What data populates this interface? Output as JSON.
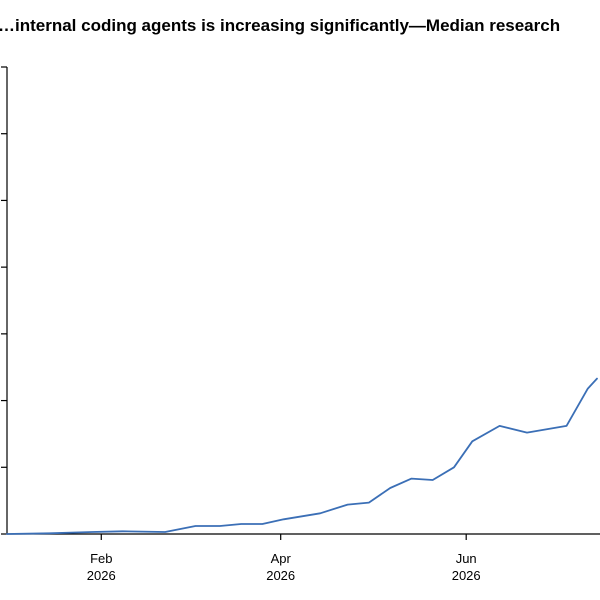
{
  "chart_data": {
    "type": "line",
    "title": "…internal coding agents is increasing significantly—Median research",
    "xlabel": "",
    "ylabel": "",
    "x_ticks": [
      {
        "date": "2026-02-01",
        "month": "Feb",
        "year": "2026"
      },
      {
        "date": "2026-04-01",
        "month": "Apr",
        "year": "2026"
      },
      {
        "date": "2026-06-01",
        "month": "Jun",
        "year": "2026"
      }
    ],
    "xlim": [
      "2026-01-01",
      "2026-07-15"
    ],
    "ylim": [
      0,
      7
    ],
    "y_tick_values": [
      0,
      1,
      2,
      3,
      4,
      5,
      6,
      7
    ],
    "y_tick_labels_visible": false,
    "grid": false,
    "line_color": "#3b6fb6",
    "series": [
      {
        "x": [
          "2026-01-01",
          "2026-01-15",
          "2026-01-29",
          "2026-02-08",
          "2026-02-22",
          "2026-03-04",
          "2026-03-12",
          "2026-03-19",
          "2026-03-26",
          "2026-04-02",
          "2026-04-14",
          "2026-04-23",
          "2026-04-30",
          "2026-05-07",
          "2026-05-14",
          "2026-05-21",
          "2026-05-28",
          "2026-06-03",
          "2026-06-12",
          "2026-06-21",
          "2026-07-04",
          "2026-07-11",
          "2026-07-14"
        ],
        "y": [
          0.0,
          0.01,
          0.03,
          0.04,
          0.03,
          0.12,
          0.12,
          0.15,
          0.15,
          0.22,
          0.31,
          0.44,
          0.47,
          0.69,
          0.83,
          0.81,
          1.0,
          1.39,
          1.62,
          1.52,
          1.62,
          2.18,
          2.33
        ]
      }
    ]
  }
}
